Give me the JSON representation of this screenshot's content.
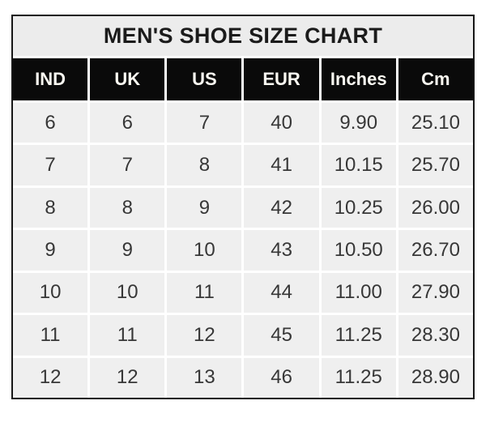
{
  "chart_data": {
    "type": "table",
    "title": "MEN'S SHOE SIZE CHART",
    "columns": [
      "IND",
      "UK",
      "US",
      "EUR",
      "Inches",
      "Cm"
    ],
    "rows": [
      [
        "6",
        "6",
        "7",
        "40",
        "9.90",
        "25.10"
      ],
      [
        "7",
        "7",
        "8",
        "41",
        "10.15",
        "25.70"
      ],
      [
        "8",
        "8",
        "9",
        "42",
        "10.25",
        "26.00"
      ],
      [
        "9",
        "9",
        "10",
        "43",
        "10.50",
        "26.70"
      ],
      [
        "10",
        "10",
        "11",
        "44",
        "11.00",
        "27.90"
      ],
      [
        "11",
        "11",
        "12",
        "45",
        "11.25",
        "28.30"
      ],
      [
        "12",
        "12",
        "13",
        "46",
        "11.25",
        "28.90"
      ]
    ]
  },
  "colors": {
    "outer_border": "#161616",
    "title_background": "#ececec",
    "header_background": "#0a0a0a",
    "header_text": "#faf8f1",
    "cell_background": "#efefef",
    "cell_text": "#373737",
    "gridline": "#ffffff"
  }
}
